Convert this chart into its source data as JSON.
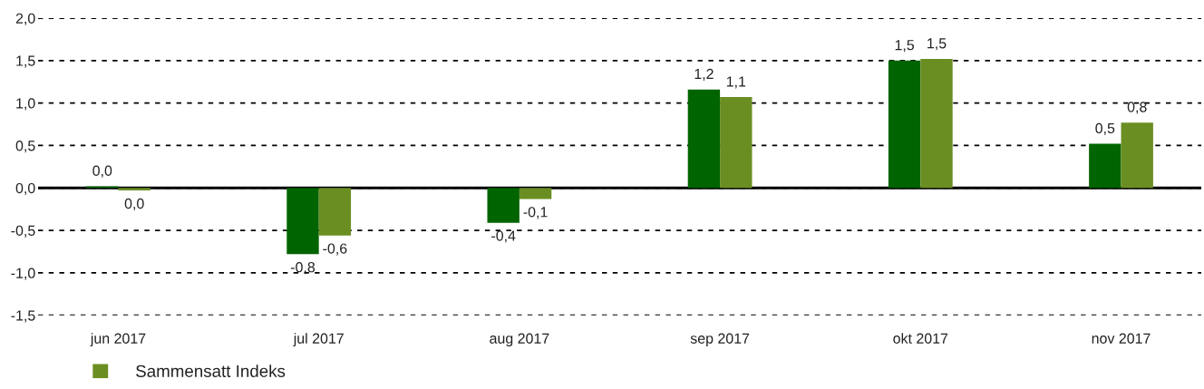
{
  "chart_data": {
    "type": "bar",
    "categories": [
      "jun 2017",
      "jul 2017",
      "aug 2017",
      "sep 2017",
      "okt 2017",
      "nov 2017"
    ],
    "series": [
      {
        "color": "#006400",
        "values": [
          0.02,
          -0.78,
          -0.41,
          1.16,
          1.5,
          0.52
        ],
        "value_labels": [
          "0,0",
          "-0,8",
          "-0,4",
          "1,2",
          "1,5",
          "0,5"
        ]
      },
      {
        "name": "Sammensatt Indeks",
        "color": "#6b8e23",
        "values": [
          -0.03,
          -0.56,
          -0.13,
          1.07,
          1.52,
          0.77
        ],
        "value_labels": [
          "0,0",
          "-0,6",
          "-0,1",
          "1,1",
          "1,5",
          "0,8"
        ]
      }
    ],
    "ylim": [
      -1.5,
      2.0
    ],
    "yticks": [
      {
        "value": -1.5,
        "label": "-1,5"
      },
      {
        "value": -1.0,
        "label": "-1,0"
      },
      {
        "value": -0.5,
        "label": "-0,5"
      },
      {
        "value": 0.0,
        "label": "0,0"
      },
      {
        "value": 0.5,
        "label": "0,5"
      },
      {
        "value": 1.0,
        "label": "1,0"
      },
      {
        "value": 1.5,
        "label": "1,5"
      },
      {
        "value": 2.0,
        "label": "2,0"
      }
    ],
    "grid": "y",
    "legend": "bottom",
    "ref_lines": [
      {
        "axis": "y",
        "value": 0,
        "color": "#000000",
        "line_style": "solid"
      }
    ]
  }
}
